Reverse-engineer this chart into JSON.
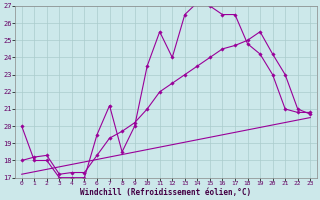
{
  "xlabel": "Windchill (Refroidissement éolien,°C)",
  "background_color": "#cce8ea",
  "grid_color": "#aacccc",
  "line_color": "#990099",
  "xlim": [
    -0.5,
    23.5
  ],
  "ylim": [
    17,
    27
  ],
  "yticks": [
    17,
    18,
    19,
    20,
    21,
    22,
    23,
    24,
    25,
    26,
    27
  ],
  "xticks": [
    0,
    1,
    2,
    3,
    4,
    5,
    6,
    7,
    8,
    9,
    10,
    11,
    12,
    13,
    14,
    15,
    16,
    17,
    18,
    19,
    20,
    21,
    22,
    23
  ],
  "line1_x": [
    0,
    1,
    2,
    3,
    4,
    5,
    6,
    7,
    8,
    9,
    10,
    11,
    12,
    13,
    14,
    15,
    16,
    17,
    18,
    19,
    20,
    21,
    22,
    23
  ],
  "line1_y": [
    20.0,
    18.0,
    18.0,
    17.0,
    17.0,
    17.0,
    19.5,
    21.2,
    18.5,
    20.0,
    23.5,
    25.5,
    24.0,
    26.5,
    27.2,
    27.0,
    26.5,
    26.5,
    24.8,
    24.2,
    23.0,
    21.0,
    20.8,
    20.8
  ],
  "line2_x": [
    0,
    1,
    2,
    3,
    4,
    5,
    6,
    7,
    8,
    9,
    10,
    11,
    12,
    13,
    14,
    15,
    16,
    17,
    18,
    19,
    20,
    21,
    22,
    23
  ],
  "line2_y": [
    18.0,
    18.2,
    18.3,
    17.2,
    17.3,
    17.3,
    18.3,
    19.3,
    19.7,
    20.2,
    21.0,
    22.0,
    22.5,
    23.0,
    23.5,
    24.0,
    24.5,
    24.7,
    25.0,
    25.5,
    24.2,
    23.0,
    21.0,
    20.7
  ],
  "line3_x": [
    0,
    23
  ],
  "line3_y": [
    17.2,
    20.5
  ]
}
